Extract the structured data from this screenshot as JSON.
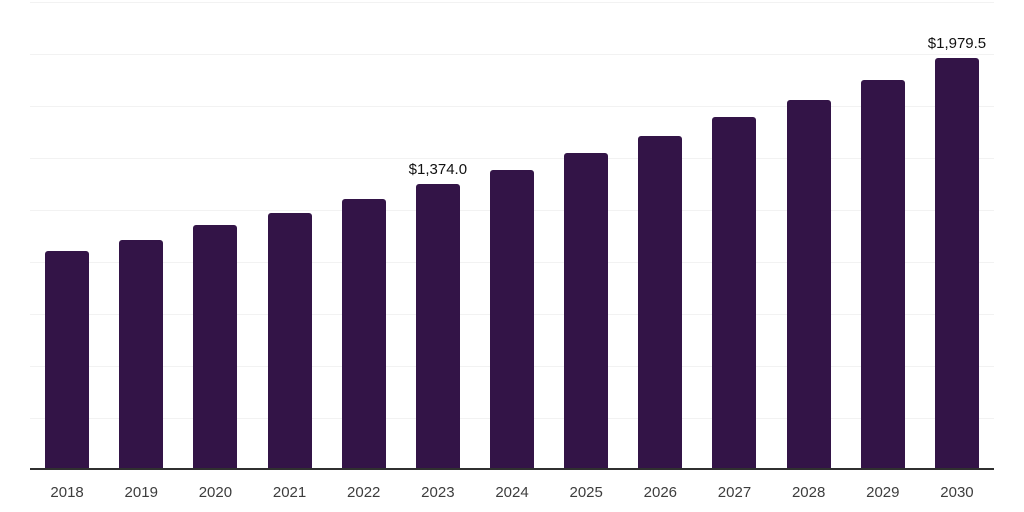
{
  "chart_data": {
    "type": "bar",
    "title": "",
    "xlabel": "",
    "ylabel": "",
    "categories": [
      "2018",
      "2019",
      "2020",
      "2021",
      "2022",
      "2023",
      "2024",
      "2025",
      "2026",
      "2027",
      "2028",
      "2029",
      "2030"
    ],
    "values": [
      1052,
      1108,
      1176,
      1237,
      1303,
      1374.0,
      1443,
      1525,
      1605,
      1695,
      1781,
      1877,
      1979.5
    ],
    "data_labels": [
      null,
      null,
      null,
      null,
      null,
      "$1,374.0",
      null,
      null,
      null,
      null,
      null,
      null,
      "$1,979.5"
    ],
    "ylim": [
      0,
      2250
    ],
    "gridline_step": 250,
    "grid": true,
    "legend": false,
    "currency_unit": "$"
  },
  "colors": {
    "background": "#ffffff",
    "bar": "#331447",
    "gridline": "#f2f2f2",
    "axis_line": "#303030",
    "data_label": "#111111",
    "tick_label": "#3d3d3d"
  }
}
